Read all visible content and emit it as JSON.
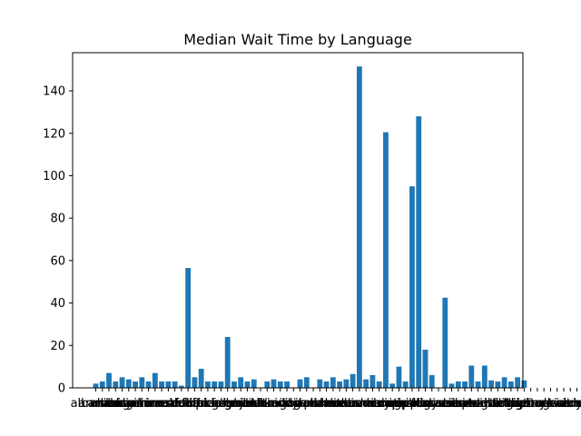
{
  "chart_data": {
    "type": "bar",
    "title": "Median Wait Time by Language",
    "xlabel": "",
    "ylabel": "",
    "ylim": [
      0,
      158
    ],
    "yticks": [
      0,
      20,
      40,
      60,
      80,
      100,
      120,
      140
    ],
    "grid": false,
    "legend": "none",
    "bar_color": "#1f77b4",
    "categories": [
      "albanian",
      "amharic",
      "arabic",
      "armenian",
      "bengali",
      "bosnian",
      "bulgarian",
      "burmese",
      "cantonese",
      "chinese",
      "creole",
      "croatian",
      "czech",
      "dari",
      "dutch",
      "farsi",
      "filipino",
      "fr-canadian",
      "french",
      "fukienese",
      "fulani",
      "german",
      "greek",
      "gujarati",
      "haitian",
      "hakka",
      "hebrew",
      "hindi",
      "hmong",
      "hungarian",
      "ibo",
      "ilocano",
      "indonesian",
      "italian",
      "japanese",
      "karen",
      "khmer",
      "korean",
      "kurdish",
      "lao",
      "lithuanian",
      "macedonian",
      "malay",
      "mandarin",
      "marathi",
      "mien",
      "mongolian",
      "nepali",
      "pashto",
      "polish",
      "portuguese",
      "punjabi",
      "romanian",
      "russian",
      "samoan",
      "serbian",
      "slovak",
      "somali",
      "spanish",
      "swahili",
      "tagalog",
      "taiwanese",
      "tamil",
      "telugu",
      "thai",
      "tibetan",
      "tigrinya",
      "toishanese",
      "tongan",
      "turkish",
      "twi",
      "ukrainian",
      "urdu",
      "uzbek",
      "vietnamese",
      "wolof",
      "yiddish",
      "yoruba",
      "arabic"
    ],
    "values": [
      2,
      3,
      7,
      3,
      5,
      4,
      3,
      5,
      3,
      7,
      3,
      3,
      3,
      1,
      56.5,
      5,
      9,
      3,
      3,
      3,
      24,
      3,
      5,
      3,
      4,
      0,
      3,
      4,
      3,
      3,
      0,
      4,
      5,
      0,
      4,
      3,
      5,
      3,
      4,
      6.5,
      151.5,
      4,
      6,
      3,
      120.5,
      2,
      10,
      3,
      95,
      128,
      18,
      6,
      0,
      42.5,
      2,
      3,
      3,
      10.5,
      3,
      10.5,
      3.5,
      3,
      5,
      3,
      5,
      3.5,
      0,
      0,
      0,
      0,
      0,
      0,
      0,
      0,
      0,
      0,
      0,
      0,
      0
    ],
    "tick_label_overflow": "abic"
  }
}
